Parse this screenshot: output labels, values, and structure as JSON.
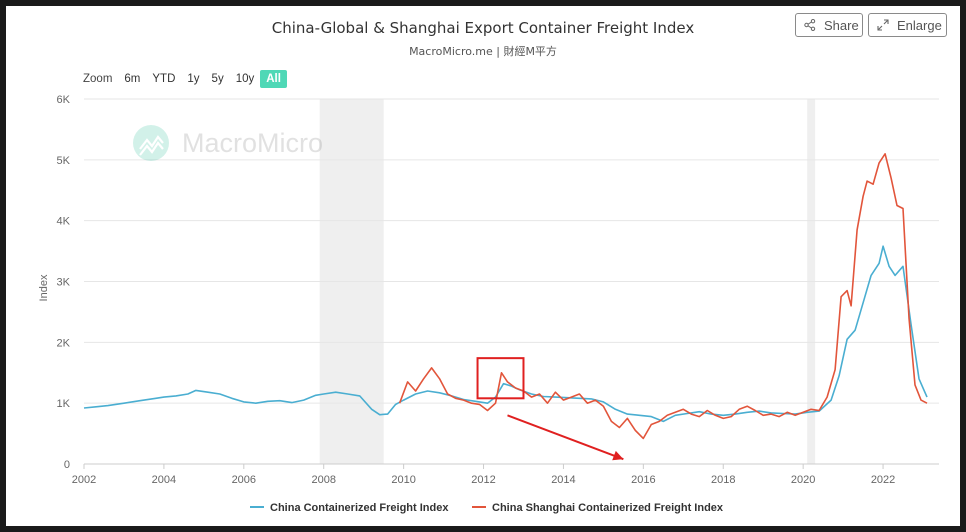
{
  "header": {
    "title": "China-Global & Shanghai Export Container Freight Index",
    "subtitle": "MacroMicro.me | 財經M平方",
    "share_label": "Share",
    "enlarge_label": "Enlarge"
  },
  "zoom": {
    "label": "Zoom",
    "options": [
      "6m",
      "YTD",
      "1y",
      "5y",
      "10y",
      "All"
    ],
    "active": "All"
  },
  "watermark": "MacroMicro",
  "colors": {
    "series1": "#4aaed1",
    "series2": "#e2553b",
    "recession": "#efefef",
    "accent": "#4fd8b6",
    "annotation": "#e02020"
  },
  "chart_data": {
    "type": "line",
    "title": "China-Global & Shanghai Export Container Freight Index",
    "subtitle": "MacroMicro.me | 財經M平方",
    "xlabel": "",
    "ylabel": "Index",
    "xlim": [
      2002,
      2023.4
    ],
    "ylim": [
      0,
      6000
    ],
    "x_ticks": [
      2002,
      2004,
      2006,
      2008,
      2010,
      2012,
      2014,
      2016,
      2018,
      2020,
      2022
    ],
    "y_ticks": [
      0,
      1000,
      2000,
      3000,
      4000,
      5000,
      6000
    ],
    "y_tick_labels": [
      "0",
      "1K",
      "2K",
      "3K",
      "4K",
      "5K",
      "6K"
    ],
    "grid": true,
    "legend": "bottom-center",
    "recession_bands": [
      [
        2007.9,
        2009.5
      ],
      [
        2020.1,
        2020.3
      ]
    ],
    "series": [
      {
        "name": "China Containerized Freight Index",
        "x": [
          2002.0,
          2002.3,
          2002.6,
          2003.0,
          2003.4,
          2003.8,
          2004.0,
          2004.3,
          2004.6,
          2004.8,
          2005.1,
          2005.4,
          2005.7,
          2006.0,
          2006.3,
          2006.6,
          2006.9,
          2007.2,
          2007.5,
          2007.8,
          2008.0,
          2008.3,
          2008.6,
          2008.9,
          2009.2,
          2009.4,
          2009.6,
          2009.8,
          2010.0,
          2010.3,
          2010.6,
          2010.9,
          2011.2,
          2011.5,
          2011.8,
          2012.1,
          2012.3,
          2012.5,
          2012.7,
          2012.9,
          2013.2,
          2013.5,
          2013.8,
          2014.1,
          2014.4,
          2014.7,
          2015.0,
          2015.3,
          2015.6,
          2015.9,
          2016.2,
          2016.5,
          2016.8,
          2017.1,
          2017.4,
          2017.7,
          2018.0,
          2018.3,
          2018.6,
          2018.9,
          2019.2,
          2019.5,
          2019.8,
          2020.1,
          2020.4,
          2020.7,
          2020.9,
          2021.1,
          2021.3,
          2021.5,
          2021.7,
          2021.9,
          2022.0,
          2022.15,
          2022.3,
          2022.5,
          2022.7,
          2022.9,
          2023.1
        ],
        "values": [
          920,
          940,
          960,
          1000,
          1040,
          1080,
          1100,
          1120,
          1150,
          1210,
          1180,
          1150,
          1080,
          1020,
          1000,
          1030,
          1040,
          1010,
          1050,
          1130,
          1150,
          1180,
          1150,
          1120,
          900,
          810,
          820,
          980,
          1050,
          1150,
          1200,
          1170,
          1120,
          1060,
          1030,
          1000,
          1100,
          1320,
          1280,
          1220,
          1150,
          1110,
          1100,
          1090,
          1080,
          1070,
          1020,
          900,
          820,
          800,
          780,
          700,
          800,
          830,
          860,
          820,
          800,
          820,
          850,
          870,
          840,
          830,
          820,
          850,
          870,
          1050,
          1450,
          2050,
          2200,
          2650,
          3100,
          3300,
          3580,
          3250,
          3100,
          3250,
          2300,
          1400,
          1100
        ]
      },
      {
        "name": "China Shanghai Containerized Freight Index",
        "x": [
          2009.9,
          2010.1,
          2010.3,
          2010.5,
          2010.7,
          2010.9,
          2011.1,
          2011.3,
          2011.5,
          2011.7,
          2011.9,
          2012.1,
          2012.3,
          2012.45,
          2012.6,
          2012.8,
          2013.0,
          2013.2,
          2013.4,
          2013.6,
          2013.8,
          2014.0,
          2014.2,
          2014.4,
          2014.6,
          2014.8,
          2015.0,
          2015.2,
          2015.4,
          2015.6,
          2015.8,
          2016.0,
          2016.2,
          2016.4,
          2016.6,
          2016.8,
          2017.0,
          2017.2,
          2017.4,
          2017.6,
          2017.8,
          2018.0,
          2018.2,
          2018.4,
          2018.6,
          2018.8,
          2019.0,
          2019.2,
          2019.4,
          2019.6,
          2019.8,
          2020.0,
          2020.2,
          2020.4,
          2020.6,
          2020.8,
          2020.95,
          2021.1,
          2021.2,
          2021.35,
          2021.5,
          2021.6,
          2021.75,
          2021.9,
          2022.05,
          2022.2,
          2022.35,
          2022.5,
          2022.65,
          2022.8,
          2022.95,
          2023.1
        ],
        "values": [
          1000,
          1350,
          1200,
          1400,
          1580,
          1400,
          1150,
          1080,
          1050,
          1000,
          980,
          880,
          1000,
          1500,
          1350,
          1250,
          1200,
          1100,
          1150,
          1000,
          1180,
          1050,
          1100,
          1150,
          1000,
          1050,
          950,
          700,
          600,
          750,
          550,
          420,
          650,
          700,
          800,
          850,
          900,
          820,
          780,
          880,
          800,
          750,
          780,
          900,
          950,
          880,
          800,
          820,
          780,
          850,
          800,
          850,
          900,
          880,
          1100,
          1550,
          2750,
          2850,
          2600,
          3850,
          4400,
          4650,
          4600,
          4950,
          5100,
          4700,
          4250,
          4200,
          2400,
          1300,
          1050,
          1000
        ]
      }
    ],
    "annotations": [
      {
        "type": "box",
        "x_range": [
          2011.85,
          2013.0
        ],
        "y_range": [
          1080,
          1740
        ]
      },
      {
        "type": "arrow",
        "from": [
          2012.6,
          800
        ],
        "to": [
          2015.5,
          80
        ]
      }
    ]
  }
}
